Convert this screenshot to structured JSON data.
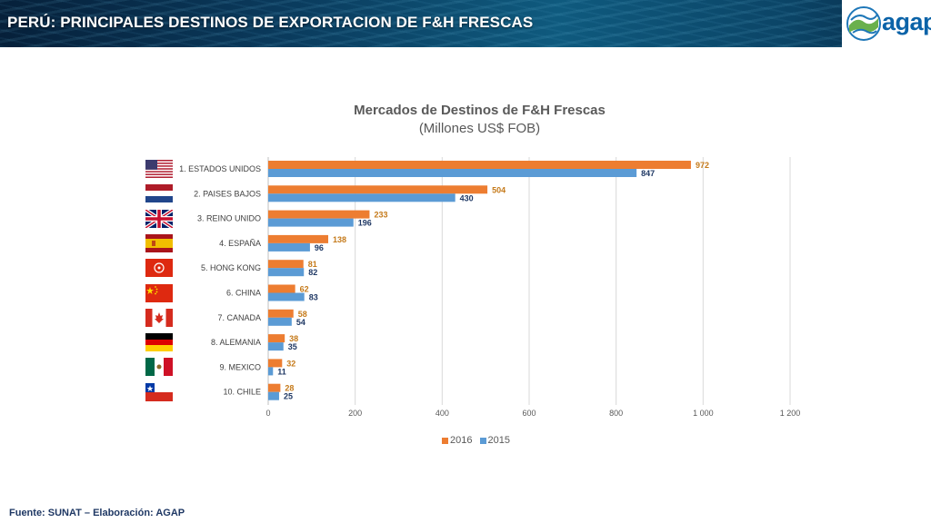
{
  "header": {
    "title": "PERÚ: PRINCIPALES DESTINOS DE EXPORTACION DE F&H FRESCAS",
    "logo_text": "agap"
  },
  "flags": [
    "usa-flag-icon",
    "netherlands-flag-icon",
    "uk-flag-icon",
    "spain-flag-icon",
    "hong-kong-flag-icon",
    "china-flag-icon",
    "canada-flag-icon",
    "germany-flag-icon",
    "mexico-flag-icon",
    "chile-flag-icon"
  ],
  "colors": {
    "s2016": "#ed7d31",
    "s2015": "#5b9bd5",
    "label2016": "#c57a1a",
    "label2015": "#1f3864"
  },
  "chart_data": {
    "type": "bar",
    "orientation": "horizontal",
    "title": "Mercados de Destinos de F&H Frescas",
    "subtitle": "(Millones US$ FOB)",
    "categories": [
      "1. ESTADOS UNIDOS",
      "2. PAISES BAJOS",
      "3. REINO UNIDO",
      "4. ESPAÑA",
      "5. HONG KONG",
      "6. CHINA",
      "7. CANADA",
      "8. ALEMANIA",
      "9. MEXICO",
      "10. CHILE"
    ],
    "series": [
      {
        "name": "2016",
        "values": [
          972,
          504,
          233,
          138,
          81,
          62,
          58,
          38,
          32,
          28
        ]
      },
      {
        "name": "2015",
        "values": [
          847,
          430,
          196,
          96,
          82,
          83,
          54,
          35,
          11,
          25
        ]
      }
    ],
    "xlim": [
      0,
      1200
    ],
    "xticks": [
      "0",
      "200",
      "400",
      "600",
      "800",
      "1 000",
      "1 200"
    ],
    "grid": true,
    "legend_position": "bottom"
  },
  "footer": {
    "source": "Fuente: SUNAT – Elaboración: AGAP"
  }
}
